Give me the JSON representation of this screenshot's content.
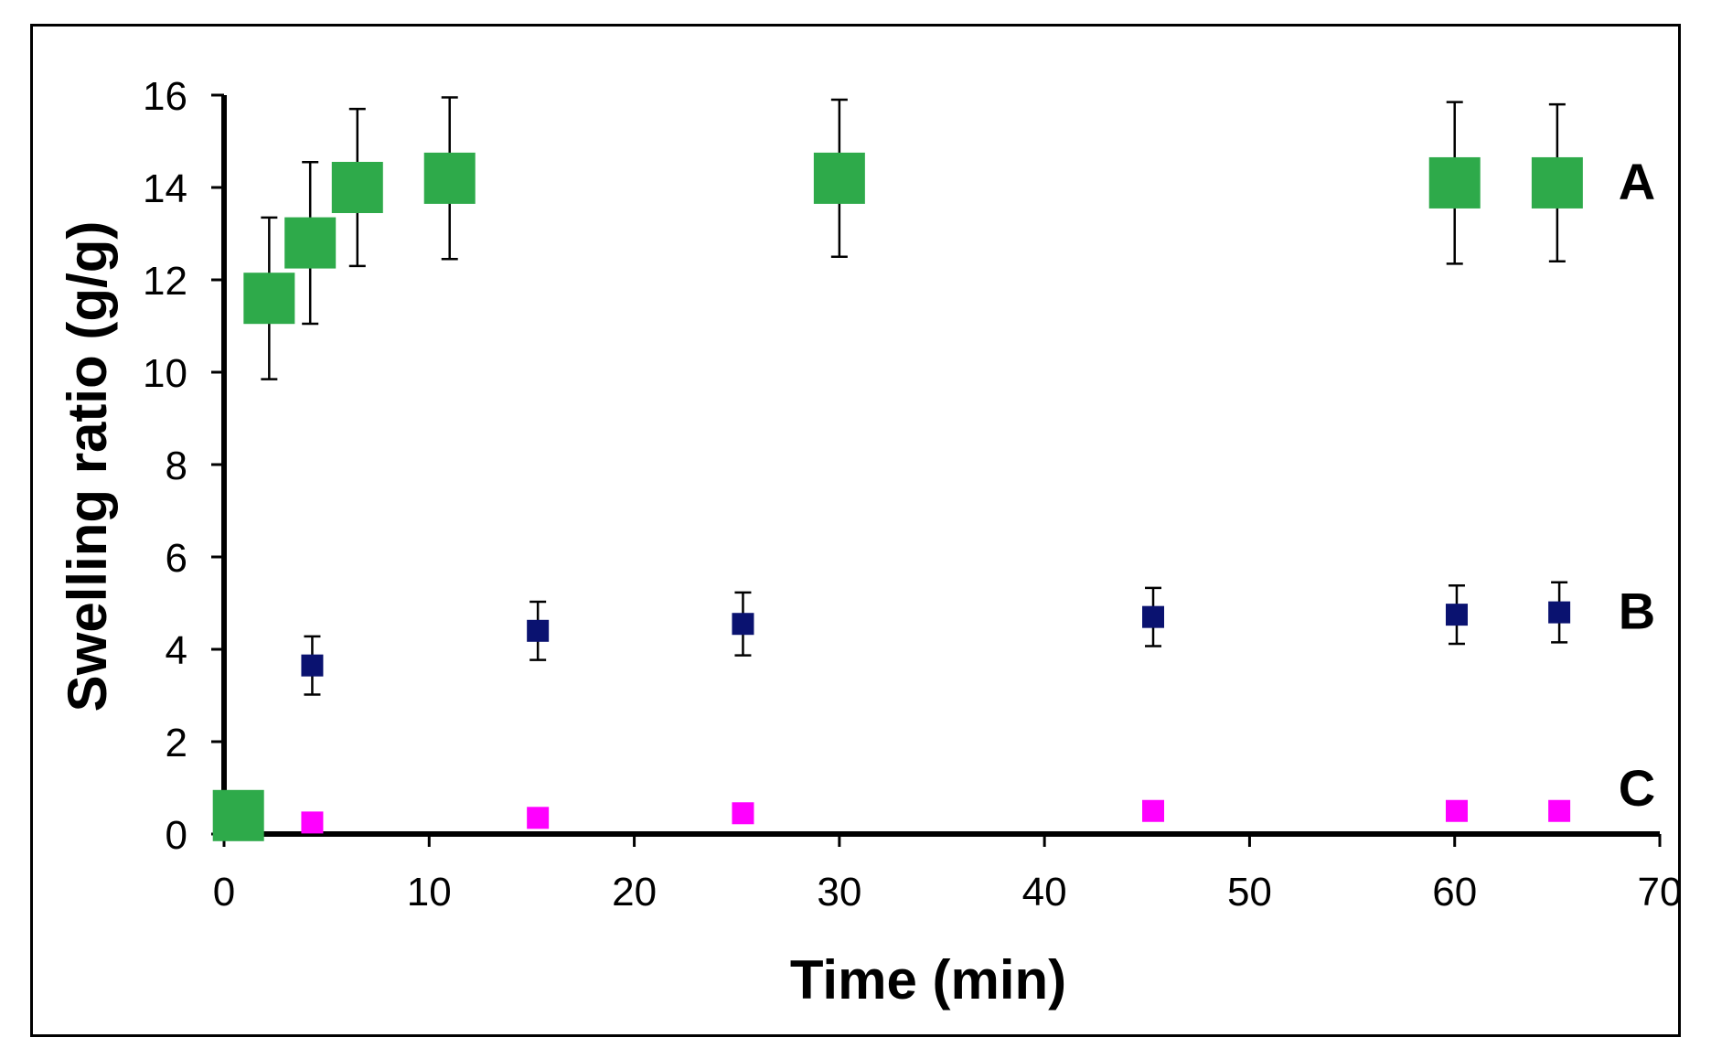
{
  "chart_data": {
    "type": "scatter",
    "title": "",
    "xlabel": "Time (min)",
    "ylabel": "Swelling ratio (g/g)",
    "xlim": [
      0,
      70
    ],
    "ylim": [
      0,
      16
    ],
    "xticks": [
      0,
      10,
      20,
      30,
      40,
      50,
      60,
      70
    ],
    "yticks": [
      0,
      2,
      4,
      6,
      8,
      10,
      12,
      14,
      16
    ],
    "grid": false,
    "legend": "inline labels at right",
    "series": [
      {
        "name": "A",
        "color": "#2eaa4a",
        "marker": "large-square",
        "x": [
          0.7,
          2.2,
          4.2,
          6.5,
          11,
          30,
          60,
          65
        ],
        "y": [
          0.4,
          11.6,
          12.8,
          14.0,
          14.2,
          14.2,
          14.1,
          14.1
        ],
        "yerr": [
          null,
          1.75,
          1.75,
          1.7,
          1.75,
          1.7,
          1.75,
          1.7
        ]
      },
      {
        "name": "B",
        "color": "#0a1270",
        "marker": "small-square",
        "x": [
          4.3,
          15.3,
          25.3,
          45.3,
          60.1,
          65.1
        ],
        "y": [
          3.65,
          4.4,
          4.55,
          4.7,
          4.75,
          4.8
        ],
        "yerr": [
          0.63,
          0.63,
          0.68,
          0.63,
          0.63,
          0.65
        ]
      },
      {
        "name": "C",
        "color": "#ff00ff",
        "marker": "small-square",
        "x": [
          4.3,
          15.3,
          25.3,
          45.3,
          60.1,
          65.1
        ],
        "y": [
          0.25,
          0.35,
          0.45,
          0.5,
          0.5,
          0.5
        ],
        "yerr": [
          null,
          null,
          null,
          null,
          null,
          null
        ]
      }
    ]
  }
}
